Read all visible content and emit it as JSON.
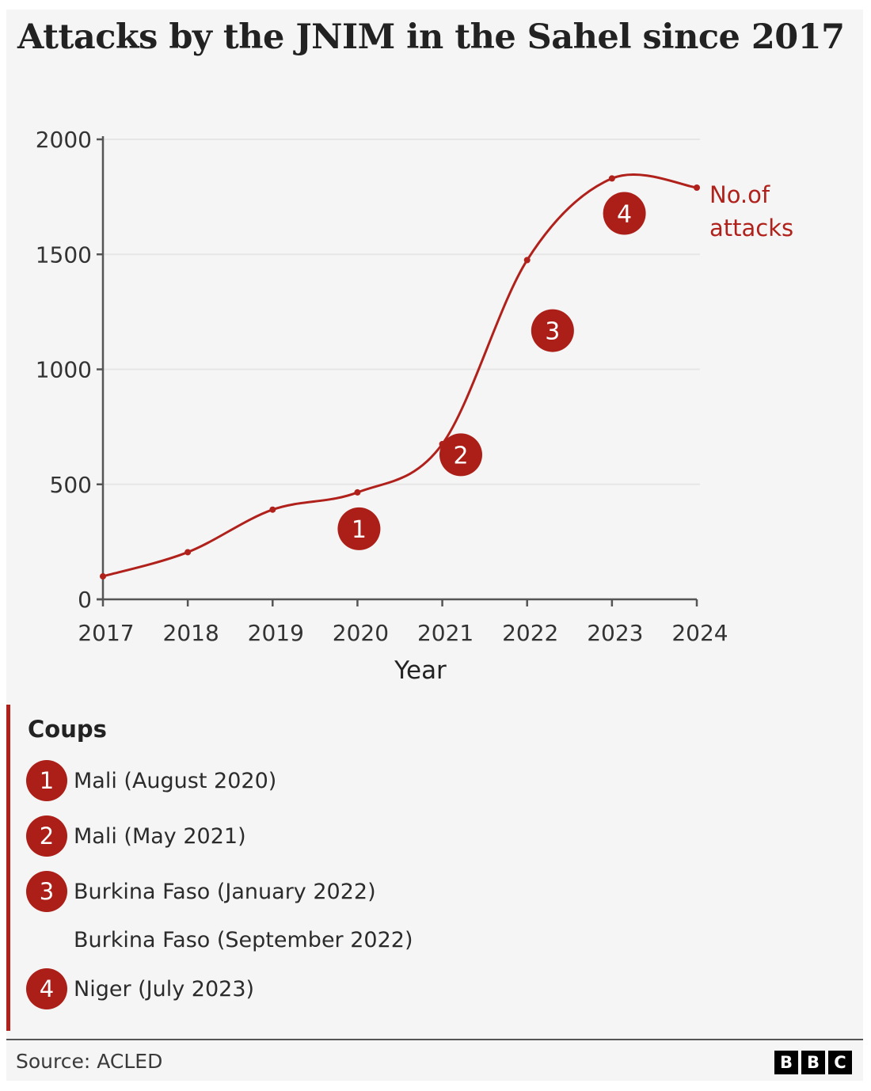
{
  "title": "Attacks by the JNIM in the Sahel since 2017",
  "chart_data": {
    "type": "line",
    "title": "Attacks by the JNIM in the Sahel since 2017",
    "xlabel": "Year",
    "ylabel": "",
    "x": [
      2017,
      2018,
      2019,
      2020,
      2021,
      2022,
      2023,
      2024
    ],
    "x_tick_labels": [
      "2017",
      "2018",
      "2019",
      "2020",
      "2021",
      "2022",
      "2023",
      "2024"
    ],
    "y_ticks": [
      0,
      500,
      1000,
      1500,
      2000
    ],
    "y_tick_labels": [
      "0",
      "500",
      "1000",
      "1500",
      "2000"
    ],
    "ylim": [
      0,
      2000
    ],
    "xlim": [
      2017,
      2024
    ],
    "grid": true,
    "series": [
      {
        "name": "No.of attacks",
        "label_lines": [
          "No.of",
          "attacks"
        ],
        "color": "#b0211b",
        "values": [
          100,
          205,
          390,
          465,
          675,
          1475,
          1830,
          1790
        ]
      }
    ],
    "annotations": [
      {
        "number": "1",
        "x": 2020.0
      },
      {
        "number": "2",
        "x": 2021.2
      },
      {
        "number": "3",
        "x": 2022.3
      },
      {
        "number": "4",
        "x": 2023.1
      }
    ]
  },
  "legend": {
    "title": "Coups",
    "items": [
      {
        "number": "1",
        "text": "Mali (August 2020)"
      },
      {
        "number": "2",
        "text": "Mali (May 2021)"
      },
      {
        "number": "3",
        "text": "Burkina Faso (January 2022)"
      },
      {
        "number": "",
        "text": "Burkina Faso (September 2022)"
      },
      {
        "number": "4",
        "text": "Niger (July 2023)"
      }
    ]
  },
  "footer": {
    "source": "Source: ACLED",
    "logo_letters": [
      "B",
      "B",
      "C"
    ]
  },
  "colors": {
    "accent": "#b0211b",
    "badge": "#ab1f18",
    "background": "#f5f5f5",
    "text": "#222222"
  }
}
